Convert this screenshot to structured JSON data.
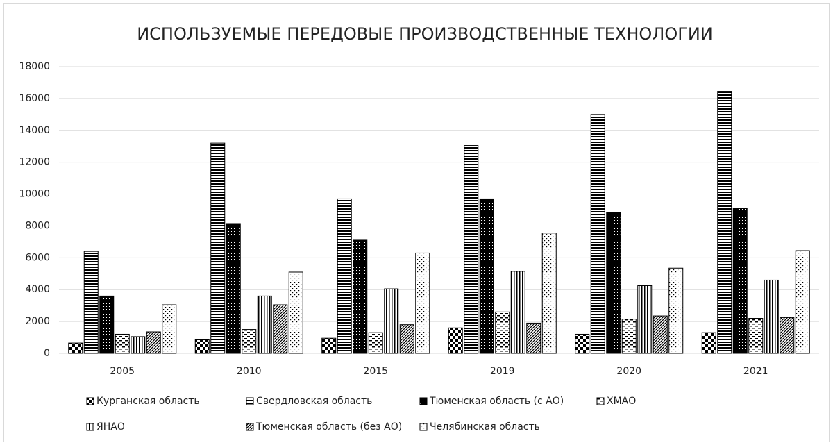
{
  "chart_data": {
    "type": "bar",
    "title": "ИСПОЛЬЗУЕМЫЕ ПЕРЕДОВЫЕ ПРОИЗВОДСТВЕННЫЕ ТЕХНОЛОГИИ",
    "categories": [
      "2005",
      "2010",
      "2015",
      "2019",
      "2020",
      "2021"
    ],
    "series": [
      {
        "name": "Курганская область",
        "color": "#000000",
        "pattern": "checker",
        "values": [
          650,
          850,
          950,
          1600,
          1200,
          1300
        ]
      },
      {
        "name": "Свердловская область",
        "color": "#000000",
        "pattern": "hstripes",
        "values": [
          6400,
          13200,
          9700,
          13050,
          15000,
          16450
        ]
      },
      {
        "name": "Тюменская область (с АО)",
        "color": "#000000",
        "pattern": "darkdots",
        "values": [
          3600,
          8150,
          7150,
          9700,
          8850,
          9100
        ]
      },
      {
        "name": "ХМАО",
        "color": "#000000",
        "pattern": "hdash",
        "values": [
          1200,
          1500,
          1300,
          2600,
          2150,
          2200
        ]
      },
      {
        "name": "ЯНАО",
        "color": "#000000",
        "pattern": "vstripes",
        "values": [
          1050,
          3600,
          4050,
          5150,
          4250,
          4600
        ]
      },
      {
        "name": "Тюменская область (без АО)",
        "color": "#000000",
        "pattern": "diag",
        "values": [
          1350,
          3050,
          1800,
          1900,
          2350,
          2250
        ]
      },
      {
        "name": "Челябинская область",
        "color": "#000000",
        "pattern": "dots",
        "values": [
          3050,
          5100,
          6300,
          7550,
          5350,
          6450
        ]
      }
    ],
    "ylim": [
      0,
      18000
    ],
    "yticks": [
      0,
      2000,
      4000,
      6000,
      8000,
      10000,
      12000,
      14000,
      16000,
      18000
    ],
    "grid": true,
    "legend": "bottom"
  }
}
